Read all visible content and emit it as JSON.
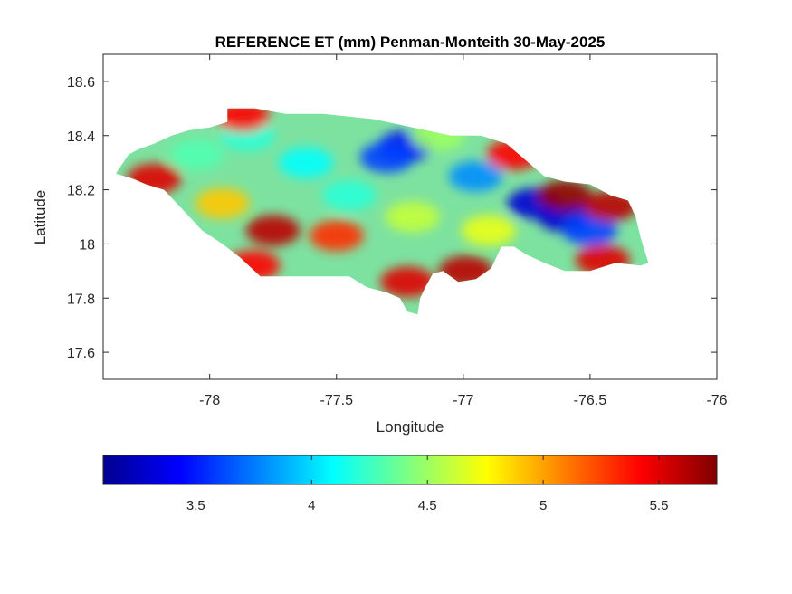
{
  "title": "REFERENCE ET (mm) Penman-Monteith 30-May-2025",
  "xlabel": "Longitude",
  "ylabel": "Latitude",
  "x_axis": {
    "range": [
      -78.42,
      -76.0
    ],
    "ticks": [
      -78,
      -77.5,
      -77,
      -76.5,
      -76
    ],
    "tick_labels": [
      "-78",
      "-77.5",
      "-77",
      "-76.5",
      "-76"
    ]
  },
  "y_axis": {
    "range": [
      17.5,
      18.7
    ],
    "ticks": [
      17.6,
      17.8,
      18,
      18.2,
      18.4,
      18.6
    ],
    "tick_labels": [
      "17.6",
      "17.8",
      "18",
      "18.2",
      "18.4",
      "18.6"
    ]
  },
  "colorbar": {
    "colormap": "jet",
    "range": [
      3.1,
      5.75
    ],
    "ticks": [
      3.5,
      4,
      4.5,
      5,
      5.5
    ],
    "tick_labels": [
      "3.5",
      "4",
      "4.5",
      "5",
      "5.5"
    ],
    "colors": [
      "#00008f",
      "#0000ff",
      "#00ffff",
      "#ffff00",
      "#ff0000",
      "#800000"
    ]
  },
  "chart_data": {
    "type": "heatmap",
    "title": "REFERENCE ET (mm) Penman-Monteith 30-May-2025",
    "xlabel": "Longitude",
    "ylabel": "Latitude",
    "xlim": [
      -78.42,
      -76.0
    ],
    "ylim": [
      17.5,
      18.7
    ],
    "clim": [
      3.1,
      5.75
    ],
    "colormap": "jet",
    "region_outline": [
      [
        -78.37,
        18.26
      ],
      [
        -78.32,
        18.33
      ],
      [
        -78.28,
        18.35
      ],
      [
        -78.22,
        18.37
      ],
      [
        -78.15,
        18.4
      ],
      [
        -78.08,
        18.42
      ],
      [
        -78.0,
        18.43
      ],
      [
        -77.93,
        18.45
      ],
      [
        -77.93,
        18.5
      ],
      [
        -77.82,
        18.5
      ],
      [
        -77.7,
        18.48
      ],
      [
        -77.55,
        18.48
      ],
      [
        -77.45,
        18.47
      ],
      [
        -77.35,
        18.46
      ],
      [
        -77.2,
        18.43
      ],
      [
        -77.05,
        18.4
      ],
      [
        -76.93,
        18.4
      ],
      [
        -76.83,
        18.37
      ],
      [
        -76.78,
        18.33
      ],
      [
        -76.73,
        18.29
      ],
      [
        -76.68,
        18.25
      ],
      [
        -76.6,
        18.23
      ],
      [
        -76.5,
        18.22
      ],
      [
        -76.42,
        18.18
      ],
      [
        -76.35,
        18.16
      ],
      [
        -76.32,
        18.1
      ],
      [
        -76.3,
        18.02
      ],
      [
        -76.27,
        17.93
      ],
      [
        -76.3,
        17.92
      ],
      [
        -76.4,
        17.93
      ],
      [
        -76.5,
        17.9
      ],
      [
        -76.6,
        17.9
      ],
      [
        -76.68,
        17.93
      ],
      [
        -76.75,
        17.96
      ],
      [
        -76.8,
        17.99
      ],
      [
        -76.85,
        17.99
      ],
      [
        -76.89,
        17.91
      ],
      [
        -76.95,
        17.87
      ],
      [
        -77.02,
        17.86
      ],
      [
        -77.08,
        17.9
      ],
      [
        -77.12,
        17.89
      ],
      [
        -77.15,
        17.84
      ],
      [
        -77.17,
        17.8
      ],
      [
        -77.18,
        17.74
      ],
      [
        -77.22,
        17.75
      ],
      [
        -77.25,
        17.8
      ],
      [
        -77.3,
        17.82
      ],
      [
        -77.38,
        17.84
      ],
      [
        -77.45,
        17.88
      ],
      [
        -77.55,
        17.88
      ],
      [
        -77.65,
        17.88
      ],
      [
        -77.75,
        17.88
      ],
      [
        -77.8,
        17.88
      ],
      [
        -77.88,
        17.95
      ],
      [
        -77.95,
        18.0
      ],
      [
        -78.03,
        18.05
      ],
      [
        -78.1,
        18.12
      ],
      [
        -78.18,
        18.2
      ],
      [
        -78.25,
        18.22
      ],
      [
        -78.3,
        18.24
      ]
    ],
    "value_hotspots": [
      {
        "lon": -77.23,
        "lat": 18.36,
        "value": 3.4
      },
      {
        "lon": -77.3,
        "lat": 18.32,
        "value": 3.6
      },
      {
        "lon": -76.95,
        "lat": 18.25,
        "value": 3.8
      },
      {
        "lon": -76.72,
        "lat": 18.15,
        "value": 3.3
      },
      {
        "lon": -76.6,
        "lat": 18.1,
        "value": 3.3
      },
      {
        "lon": -76.5,
        "lat": 18.05,
        "value": 3.6
      },
      {
        "lon": -77.62,
        "lat": 18.3,
        "value": 4.1
      },
      {
        "lon": -77.45,
        "lat": 18.18,
        "value": 4.2
      },
      {
        "lon": -78.05,
        "lat": 18.33,
        "value": 4.3
      },
      {
        "lon": -77.85,
        "lat": 18.4,
        "value": 4.2
      },
      {
        "lon": -77.95,
        "lat": 18.15,
        "value": 4.9
      },
      {
        "lon": -78.22,
        "lat": 18.24,
        "value": 5.5
      },
      {
        "lon": -77.75,
        "lat": 18.05,
        "value": 5.6
      },
      {
        "lon": -77.83,
        "lat": 17.92,
        "value": 5.4
      },
      {
        "lon": -77.5,
        "lat": 18.03,
        "value": 5.3
      },
      {
        "lon": -77.22,
        "lat": 17.86,
        "value": 5.5
      },
      {
        "lon": -76.99,
        "lat": 17.9,
        "value": 5.6
      },
      {
        "lon": -76.6,
        "lat": 18.18,
        "value": 5.7
      },
      {
        "lon": -76.42,
        "lat": 18.14,
        "value": 5.6
      },
      {
        "lon": -76.45,
        "lat": 17.94,
        "value": 5.5
      },
      {
        "lon": -76.8,
        "lat": 18.33,
        "value": 5.4
      },
      {
        "lon": -77.87,
        "lat": 18.47,
        "value": 5.4
      },
      {
        "lon": -77.2,
        "lat": 18.1,
        "value": 4.6
      },
      {
        "lon": -76.9,
        "lat": 18.05,
        "value": 4.7
      },
      {
        "lon": -77.1,
        "lat": 18.4,
        "value": 4.5
      }
    ]
  }
}
